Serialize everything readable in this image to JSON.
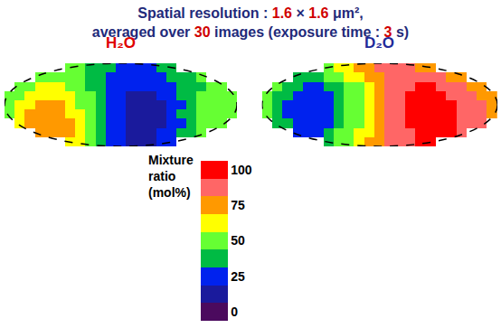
{
  "chart_data": {
    "type": "heatmap",
    "title": "Spatial resolution : 1.6 × 1.6 μm², averaged over 30 images (exposure time : 3 s)",
    "xlim": [
      -0.5,
      22.5
    ],
    "ylim": [
      -0.5,
      8.5
    ],
    "tick_labels": false,
    "color_bar": {
      "title": "Mixture ratio (mol%)",
      "zlim": [
        -6.25,
        106.25
      ],
      "zticks": [
        0,
        25,
        50,
        75,
        100
      ],
      "colors": [
        "#4b0a5e",
        "#1a1a9c",
        "#0022ee",
        "#00bb44",
        "#66ff33",
        "#ffff00",
        "#ff9900",
        "#ff6666",
        "#ff0000"
      ]
    },
    "panels": [
      {
        "title": "H₂O",
        "color": "#e00000",
        "cells": [
          [
            null,
            null,
            null,
            null,
            null,
            null,
            68,
            58,
            46,
            36,
            28,
            22,
            18,
            17,
            18,
            22,
            28,
            null,
            null,
            null,
            null,
            null,
            null
          ],
          [
            null,
            null,
            null,
            74,
            80,
            78,
            72,
            62,
            50,
            38,
            28,
            22,
            18,
            16,
            17,
            20,
            26,
            32,
            40,
            46,
            null,
            null,
            null
          ],
          [
            null,
            62,
            70,
            77,
            80,
            78,
            70,
            60,
            48,
            36,
            26,
            20,
            16,
            14,
            15,
            18,
            24,
            30,
            38,
            45,
            50,
            54,
            null
          ],
          [
            55,
            62,
            70,
            76,
            78,
            76,
            68,
            58,
            46,
            36,
            26,
            20,
            15,
            13,
            14,
            18,
            24,
            32,
            40,
            46,
            50,
            54,
            52
          ],
          [
            52,
            58,
            66,
            72,
            74,
            72,
            66,
            56,
            46,
            36,
            26,
            20,
            16,
            14,
            15,
            18,
            24,
            30,
            38,
            44,
            50,
            52,
            50
          ],
          [
            50,
            55,
            62,
            66,
            68,
            66,
            62,
            54,
            44,
            34,
            26,
            20,
            17,
            16,
            17,
            20,
            26,
            32,
            38,
            44,
            48,
            50,
            48
          ],
          [
            null,
            52,
            56,
            60,
            62,
            60,
            56,
            50,
            42,
            34,
            26,
            22,
            20,
            19,
            20,
            22,
            26,
            32,
            38,
            42,
            46,
            48,
            null
          ],
          [
            null,
            null,
            null,
            54,
            56,
            54,
            50,
            46,
            40,
            34,
            28,
            24,
            22,
            22,
            24,
            28,
            32,
            36,
            40,
            44,
            null,
            null,
            null
          ],
          [
            null,
            null,
            null,
            null,
            null,
            null,
            48,
            44,
            40,
            36,
            32,
            28,
            26,
            28,
            30,
            32,
            36,
            null,
            null,
            null,
            null,
            null,
            null
          ]
        ]
      },
      {
        "title": "D₂O",
        "color": "#1f2a9a",
        "cells": [
          [
            null,
            null,
            null,
            null,
            null,
            null,
            40,
            48,
            56,
            64,
            72,
            80,
            86,
            90,
            92,
            94,
            94,
            null,
            null,
            null,
            null,
            null,
            null
          ],
          [
            null,
            null,
            null,
            30,
            28,
            30,
            36,
            44,
            52,
            60,
            68,
            76,
            84,
            90,
            93,
            95,
            96,
            95,
            94,
            90,
            null,
            null,
            null
          ],
          [
            null,
            40,
            32,
            26,
            24,
            24,
            28,
            34,
            44,
            54,
            64,
            74,
            84,
            90,
            94,
            96,
            97,
            96,
            95,
            92,
            88,
            82,
            null
          ],
          [
            46,
            36,
            28,
            22,
            20,
            20,
            24,
            32,
            44,
            56,
            66,
            76,
            86,
            92,
            96,
            98,
            98,
            96,
            94,
            92,
            88,
            82,
            76
          ],
          [
            48,
            38,
            28,
            22,
            20,
            20,
            24,
            32,
            44,
            56,
            66,
            76,
            86,
            92,
            95,
            97,
            97,
            96,
            94,
            92,
            88,
            82,
            76
          ],
          [
            50,
            40,
            32,
            26,
            24,
            24,
            28,
            34,
            46,
            56,
            66,
            76,
            84,
            90,
            94,
            96,
            96,
            95,
            93,
            90,
            86,
            80,
            74
          ],
          [
            null,
            46,
            38,
            32,
            30,
            30,
            32,
            38,
            48,
            56,
            66,
            74,
            82,
            88,
            92,
            94,
            94,
            93,
            90,
            86,
            80,
            74,
            null
          ],
          [
            null,
            null,
            null,
            42,
            40,
            40,
            44,
            50,
            58,
            66,
            74,
            80,
            86,
            88,
            90,
            90,
            88,
            86,
            80,
            74,
            null,
            null,
            null
          ],
          [
            null,
            null,
            null,
            null,
            null,
            null,
            54,
            60,
            66,
            72,
            78,
            82,
            84,
            84,
            82,
            78,
            74,
            null,
            null,
            null,
            null,
            null,
            null
          ]
        ]
      }
    ]
  }
}
